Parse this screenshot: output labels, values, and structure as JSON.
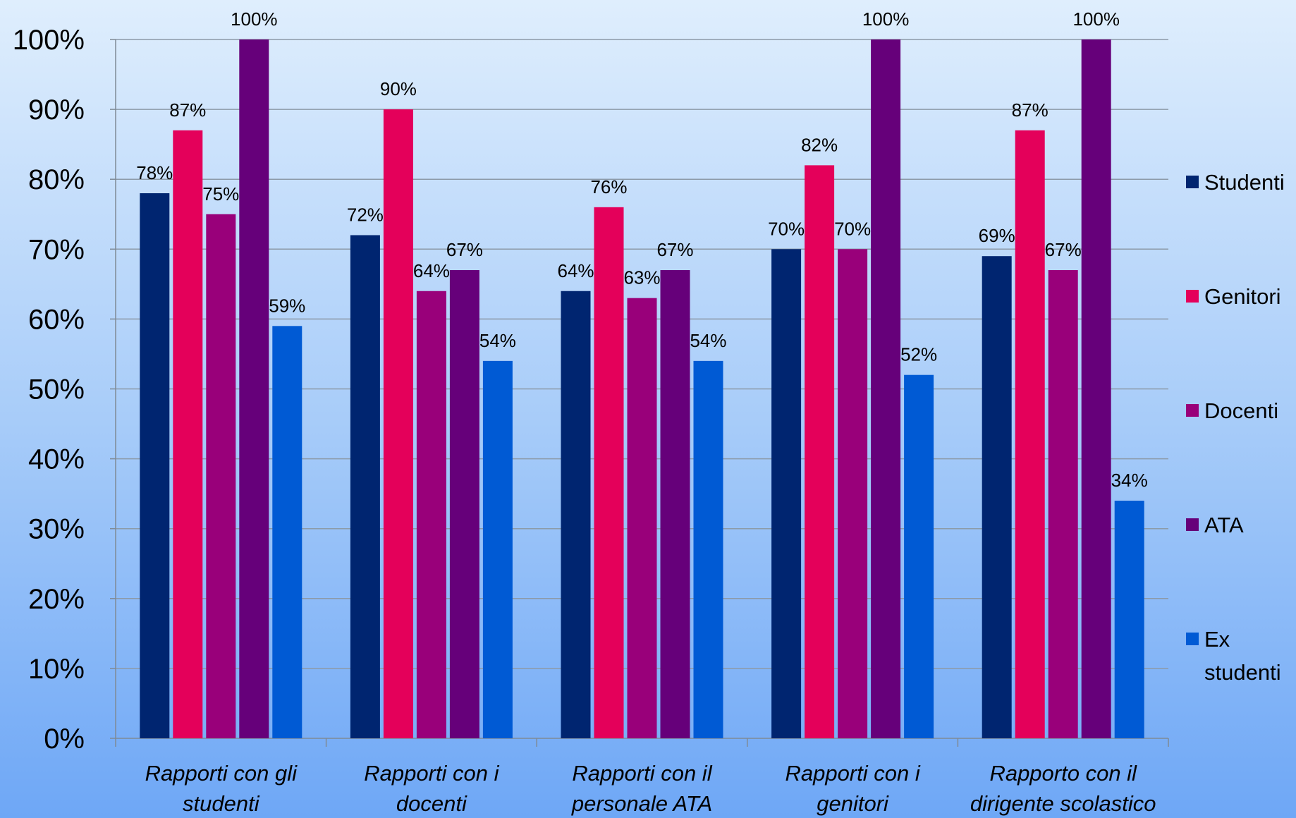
{
  "chart_data": {
    "type": "bar",
    "title": "",
    "xlabel": "",
    "ylabel": "",
    "ylim": [
      0,
      100
    ],
    "y_tick_labels": [
      "0%",
      "10%",
      "20%",
      "30%",
      "40%",
      "50%",
      "60%",
      "70%",
      "80%",
      "90%",
      "100%"
    ],
    "grid": true,
    "legend_position": "right",
    "categories": [
      [
        "Rapporti con gli",
        "studenti"
      ],
      [
        "Rapporti con i",
        "docenti"
      ],
      [
        "Rapporti con il",
        "personale ATA"
      ],
      [
        "Rapporti con i",
        "genitori"
      ],
      [
        "Rapporto con il",
        "dirigente scolastico"
      ]
    ],
    "series": [
      {
        "name": "Studenti",
        "legend_lines": [
          "Studenti"
        ],
        "color": "#002570",
        "values": [
          78,
          72,
          64,
          70,
          69
        ],
        "labels": [
          "78%",
          "72%",
          "64%",
          "70%",
          "69%"
        ]
      },
      {
        "name": "Genitori",
        "legend_lines": [
          "Genitori"
        ],
        "color": "#e4005a",
        "values": [
          87,
          90,
          76,
          82,
          87
        ],
        "labels": [
          "87%",
          "90%",
          "76%",
          "82%",
          "87%"
        ]
      },
      {
        "name": "Docenti",
        "legend_lines": [
          "Docenti"
        ],
        "color": "#99007a",
        "values": [
          75,
          64,
          63,
          70,
          67
        ],
        "labels": [
          "75%",
          "64%",
          "63%",
          "70%",
          "67%"
        ]
      },
      {
        "name": "ATA",
        "legend_lines": [
          "ATA"
        ],
        "color": "#66007a",
        "values": [
          100,
          67,
          67,
          100,
          100
        ],
        "labels": [
          "100%",
          "67%",
          "67%",
          "100%",
          "100%"
        ]
      },
      {
        "name": "Ex studenti",
        "legend_lines": [
          "Ex",
          "studenti"
        ],
        "color": "#005ad4",
        "values": [
          59,
          54,
          54,
          52,
          34
        ],
        "labels": [
          "59%",
          "54%",
          "54%",
          "52%",
          "34%"
        ]
      }
    ]
  }
}
